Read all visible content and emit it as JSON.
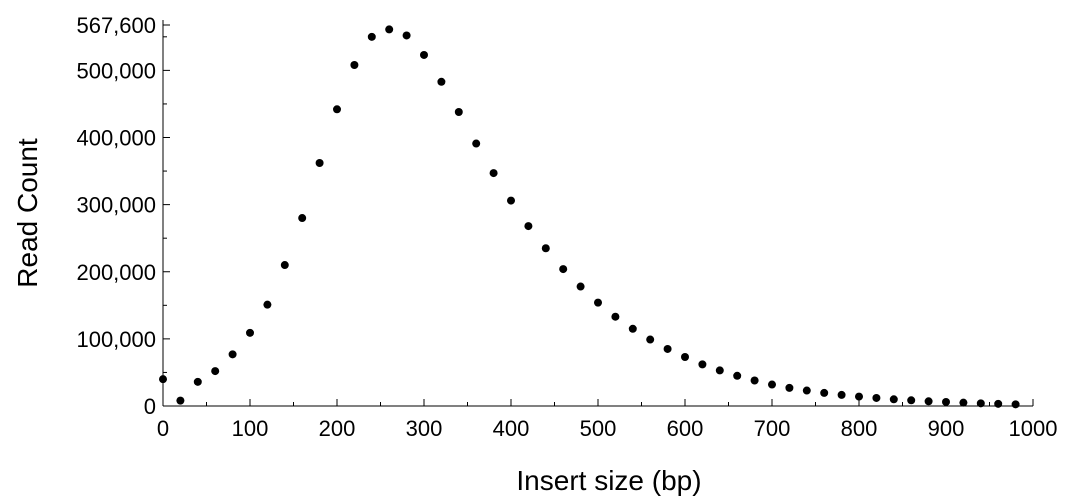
{
  "chart_data": {
    "type": "scatter",
    "title": "",
    "xlabel": "Insert size (bp)",
    "ylabel": "Read Count",
    "xlim": [
      0,
      1000
    ],
    "ylim": [
      0,
      567600
    ],
    "grid": false,
    "marker_color": "#000000",
    "x_ticks": [
      0,
      100,
      200,
      300,
      400,
      500,
      600,
      700,
      800,
      900,
      1000
    ],
    "x_tick_labels": [
      "0",
      "100",
      "200",
      "300",
      "400",
      "500",
      "600",
      "700",
      "800",
      "900",
      "1000"
    ],
    "y_ticks": [
      0,
      100000,
      200000,
      300000,
      400000,
      500000,
      567600
    ],
    "y_tick_labels": [
      "0",
      "100,000",
      "200,000",
      "300,000",
      "400,000",
      "500,000",
      "567,600"
    ],
    "series": [
      {
        "x": [
          0,
          20,
          40,
          60,
          80,
          100,
          120,
          140,
          160,
          180,
          200,
          220,
          240,
          260,
          280,
          300,
          320,
          340,
          360,
          380,
          400,
          420,
          440,
          460,
          480,
          500,
          520,
          540,
          560,
          580,
          600,
          620,
          640,
          660,
          680,
          700,
          720,
          740,
          760,
          780,
          800,
          820,
          840,
          860,
          880,
          900,
          920,
          940,
          960,
          980
        ],
        "y": [
          40000,
          8000,
          36000,
          52000,
          77000,
          109000,
          151000,
          210000,
          280000,
          362000,
          442000,
          508000,
          550000,
          561000,
          552000,
          523000,
          483000,
          438000,
          391000,
          347000,
          306000,
          268000,
          235000,
          204000,
          178000,
          154000,
          133000,
          115000,
          99000,
          85000,
          73000,
          62000,
          53000,
          45000,
          38000,
          32000,
          27000,
          23000,
          19500,
          16500,
          14000,
          12000,
          10000,
          8500,
          7000,
          6000,
          5000,
          4000,
          3200,
          2500
        ]
      }
    ]
  }
}
